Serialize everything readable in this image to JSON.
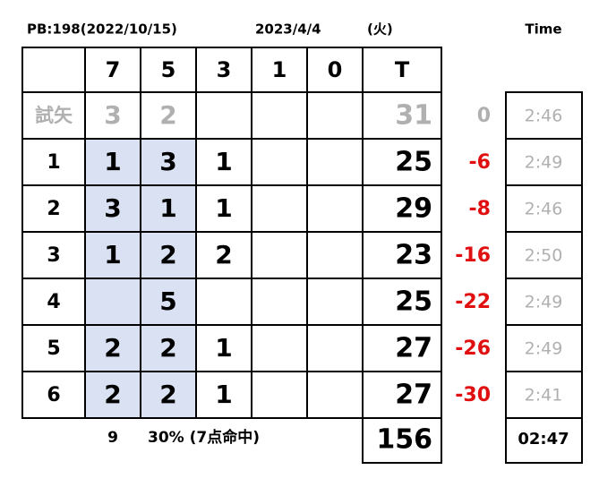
{
  "header": {
    "pb": "PB:198(2022/10/15)",
    "date": "2023/4/4",
    "weekday": "(火)",
    "time_label": "Time"
  },
  "table": {
    "columns": [
      "7",
      "5",
      "3",
      "1",
      "0",
      "T"
    ],
    "practice": {
      "label": "試矢",
      "counts": [
        3,
        2,
        null,
        null,
        null
      ],
      "total": 31,
      "diff": 0,
      "time": "2:46"
    },
    "rows": [
      {
        "label": 1,
        "counts": [
          1,
          3,
          1,
          null,
          null
        ],
        "total": 25,
        "diff": -6,
        "time": "2:49"
      },
      {
        "label": 2,
        "counts": [
          3,
          1,
          1,
          null,
          null
        ],
        "total": 29,
        "diff": -8,
        "time": "2:46"
      },
      {
        "label": 3,
        "counts": [
          1,
          2,
          2,
          null,
          null
        ],
        "total": 23,
        "diff": -16,
        "time": "2:50"
      },
      {
        "label": 4,
        "counts": [
          null,
          5,
          null,
          null,
          null
        ],
        "total": 25,
        "diff": -22,
        "time": "2:49"
      },
      {
        "label": 5,
        "counts": [
          2,
          2,
          1,
          null,
          null
        ],
        "total": 27,
        "diff": -26,
        "time": "2:49"
      },
      {
        "label": 6,
        "counts": [
          2,
          2,
          1,
          null,
          null
        ],
        "total": 27,
        "diff": -30,
        "time": "2:41"
      }
    ]
  },
  "footer": {
    "arrows": 9,
    "rate": "30% (7点命中)",
    "total": 156,
    "time": "02:47"
  }
}
